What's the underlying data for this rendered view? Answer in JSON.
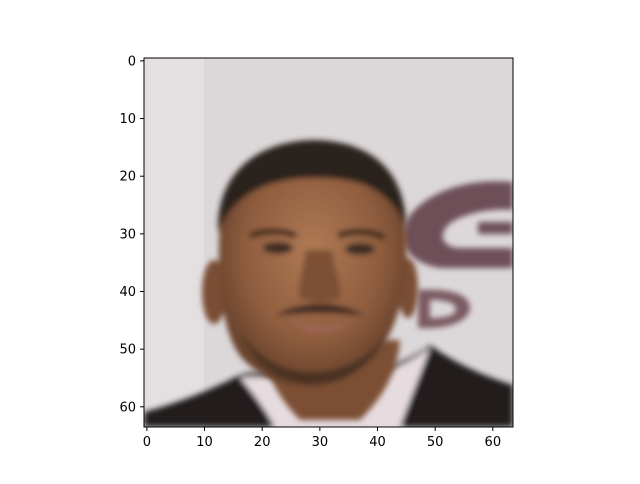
{
  "figure": {
    "background": "#ffffff",
    "image": {
      "description_colors": {
        "backdrop": "#dcd8da",
        "logo": "#6b4c55",
        "skin": "#8a5a3c",
        "skin_light": "#a9744e",
        "hair": "#2b211c",
        "shirt": "#e8dfe2",
        "jacket": "#1f1a1c"
      },
      "pixel_size": [
        64,
        64
      ]
    },
    "x_axis": {
      "ticks": [
        {
          "value": 0,
          "label": "0"
        },
        {
          "value": 10,
          "label": "10"
        },
        {
          "value": 20,
          "label": "20"
        },
        {
          "value": 30,
          "label": "30"
        },
        {
          "value": 40,
          "label": "40"
        },
        {
          "value": 50,
          "label": "50"
        },
        {
          "value": 60,
          "label": "60"
        }
      ],
      "range": [
        -0.5,
        63.5
      ]
    },
    "y_axis": {
      "ticks": [
        {
          "value": 0,
          "label": "0"
        },
        {
          "value": 10,
          "label": "10"
        },
        {
          "value": 20,
          "label": "20"
        },
        {
          "value": 30,
          "label": "30"
        },
        {
          "value": 40,
          "label": "40"
        },
        {
          "value": 50,
          "label": "50"
        },
        {
          "value": 60,
          "label": "60"
        }
      ],
      "range": [
        -0.5,
        63.5
      ],
      "inverted": true
    }
  }
}
